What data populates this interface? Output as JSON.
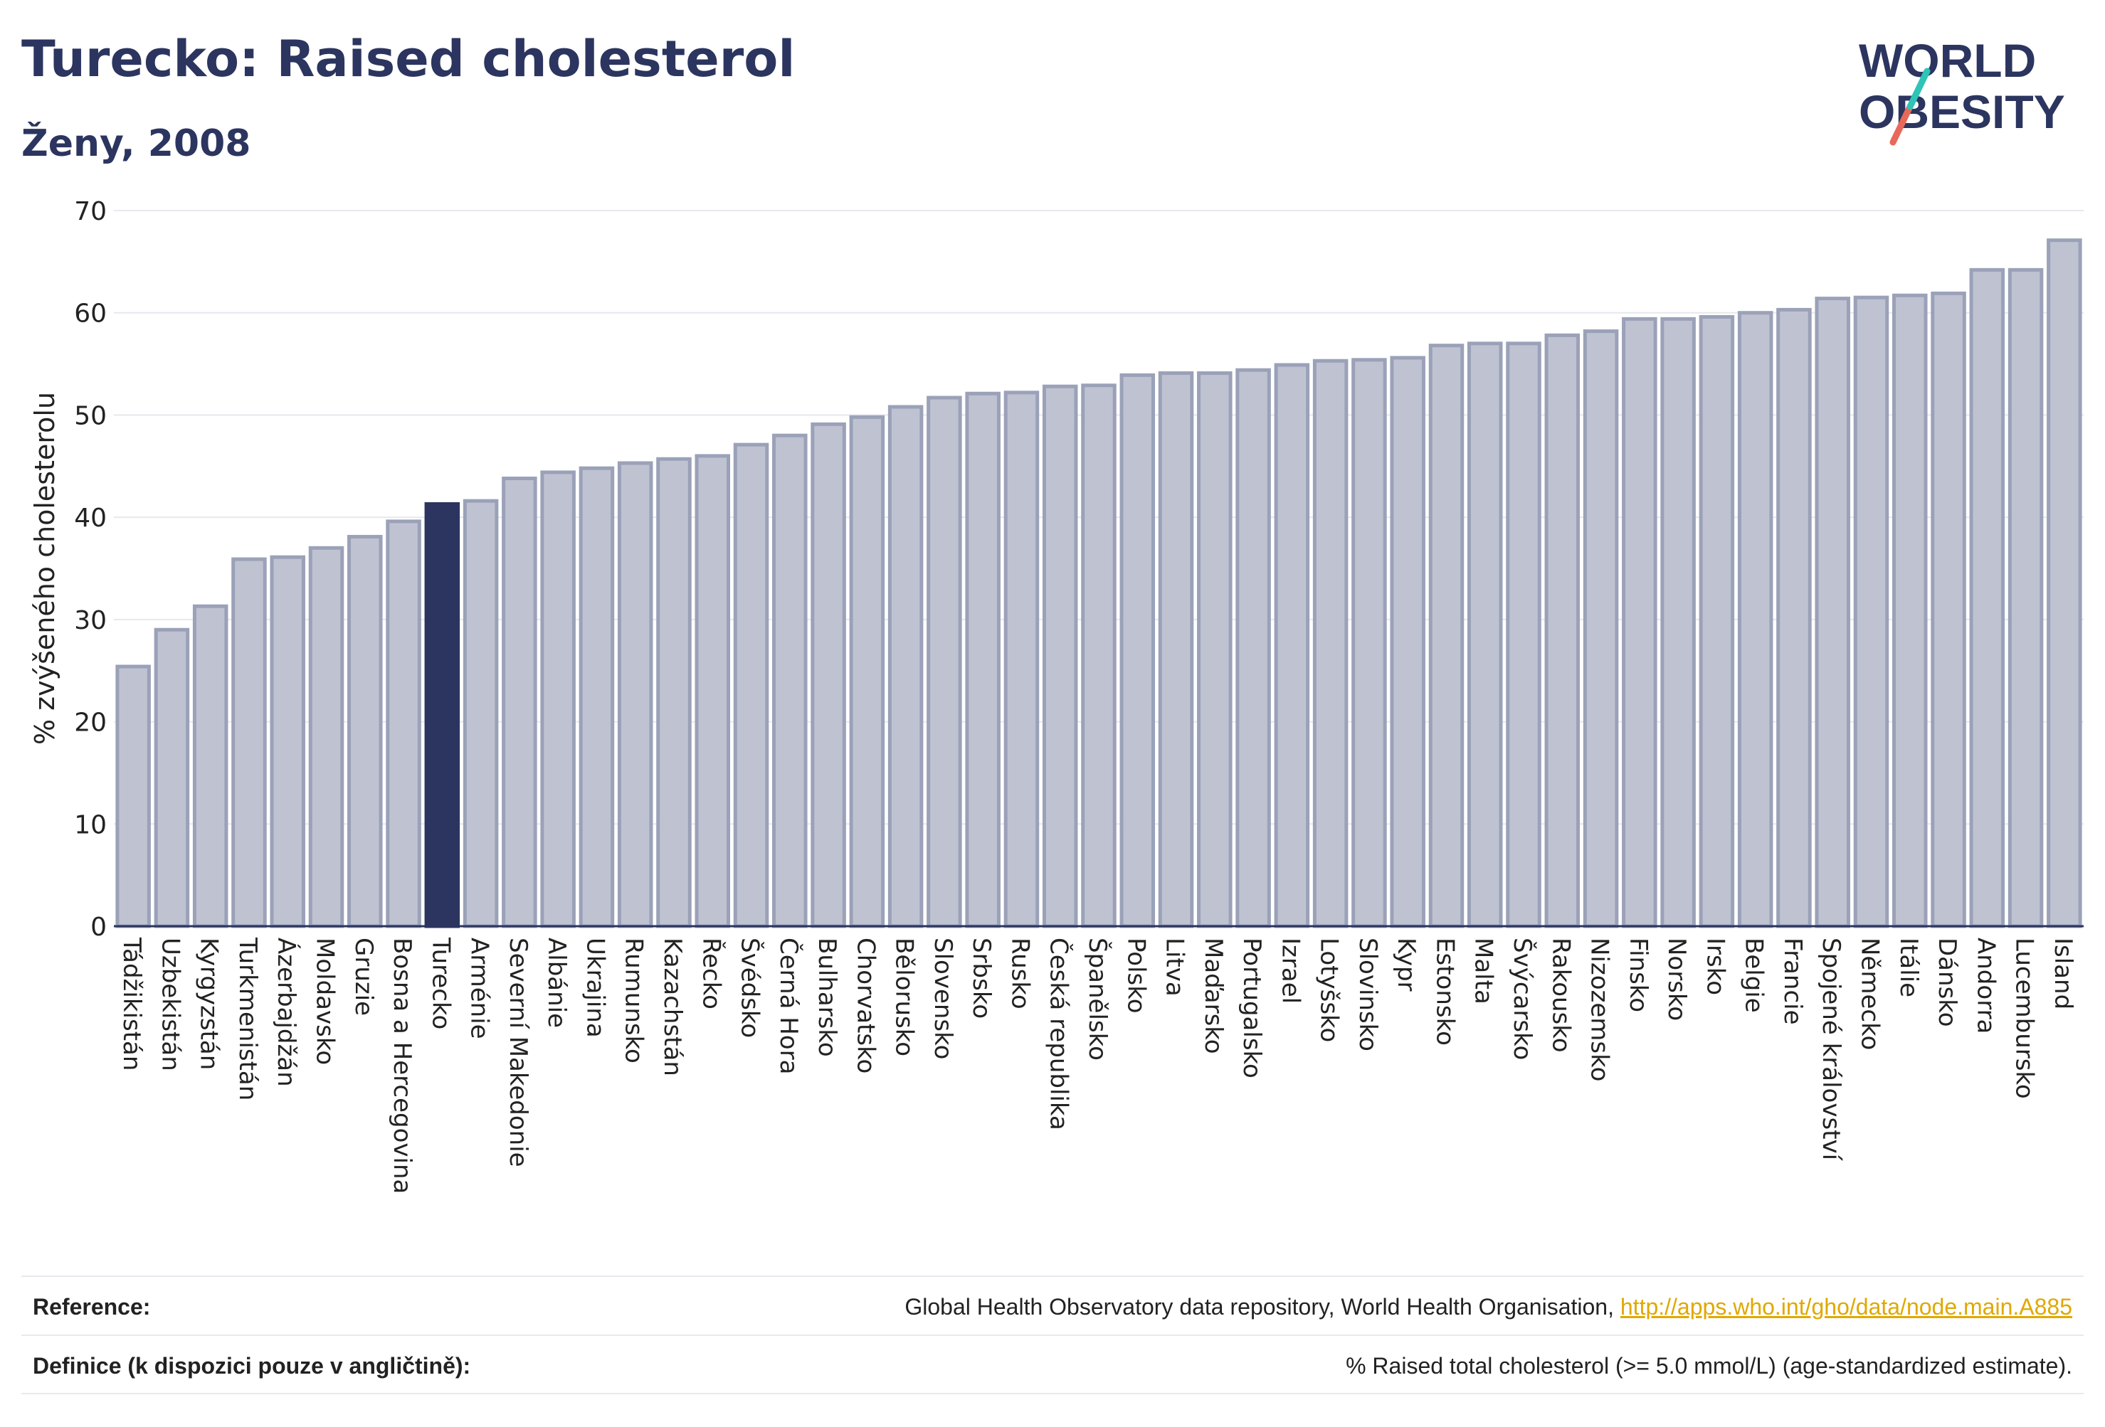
{
  "header": {
    "title": "Turecko: Raised cholesterol",
    "subtitle": "Ženy, 2008",
    "logo_line1": "WORLD",
    "logo_line2": "OBESITY"
  },
  "footer": {
    "reference_label": "Reference:",
    "reference_text": "Global Health Observatory data repository, World Health Organisation, ",
    "reference_link": "http://apps.who.int/gho/data/node.main.A885",
    "definition_label": "Definice (k dispozici pouze v angličtině):",
    "definition_text": "% Raised total cholesterol (>= 5.0 mmol/L) (age-standardized estimate)."
  },
  "colors": {
    "bar": "#bfc3d1",
    "bar_stroke": "#9aa1b8",
    "highlight": "#2b355f",
    "title": "#2b355f",
    "logo_accent_teal": "#2ec4b6",
    "logo_accent_red": "#e8685a"
  },
  "chart_data": {
    "type": "bar",
    "title": "Turecko: Raised cholesterol",
    "subtitle": "Ženy, 2008",
    "xlabel": "",
    "ylabel": "% zvýšeného cholesterolu",
    "ylim": [
      0,
      70
    ],
    "yticks": [
      0,
      10,
      20,
      30,
      40,
      50,
      60,
      70
    ],
    "grid": true,
    "highlight": "Turecko",
    "categories": [
      "Tádžikistán",
      "Uzbekistán",
      "Kyrgyzstán",
      "Turkmenistán",
      "Ázerbajdžán",
      "Moldavsko",
      "Gruzie",
      "Bosna a Hercegovina",
      "Turecko",
      "Arménie",
      "Severní Makedonie",
      "Albánie",
      "Ukrajina",
      "Rumunsko",
      "Kazachstán",
      "Řecko",
      "Švédsko",
      "Černá Hora",
      "Bulharsko",
      "Chorvatsko",
      "Bělorusko",
      "Slovensko",
      "Srbsko",
      "Rusko",
      "Česká republika",
      "Španělsko",
      "Polsko",
      "Litva",
      "Maďarsko",
      "Portugalsko",
      "Izrael",
      "Lotyšsko",
      "Slovinsko",
      "Kypr",
      "Estonsko",
      "Malta",
      "Švýcarsko",
      "Rakousko",
      "Nizozemsko",
      "Finsko",
      "Norsko",
      "Irsko",
      "Belgie",
      "Francie",
      "Spojené království",
      "Německo",
      "Itálie",
      "Dánsko",
      "Andorra",
      "Lucembursko",
      "Island"
    ],
    "values": [
      25.4,
      29.0,
      31.3,
      35.9,
      36.1,
      37.0,
      38.1,
      39.6,
      41.3,
      41.6,
      43.8,
      44.4,
      44.8,
      45.3,
      45.7,
      46.0,
      47.1,
      48.0,
      49.1,
      49.8,
      50.8,
      51.7,
      52.1,
      52.2,
      52.8,
      52.9,
      53.9,
      54.1,
      54.1,
      54.4,
      54.9,
      55.3,
      55.4,
      55.6,
      56.8,
      57.0,
      57.0,
      57.8,
      58.2,
      59.4,
      59.4,
      59.6,
      60.0,
      60.3,
      61.4,
      61.5,
      61.7,
      61.9,
      64.2,
      64.2,
      67.1
    ]
  }
}
